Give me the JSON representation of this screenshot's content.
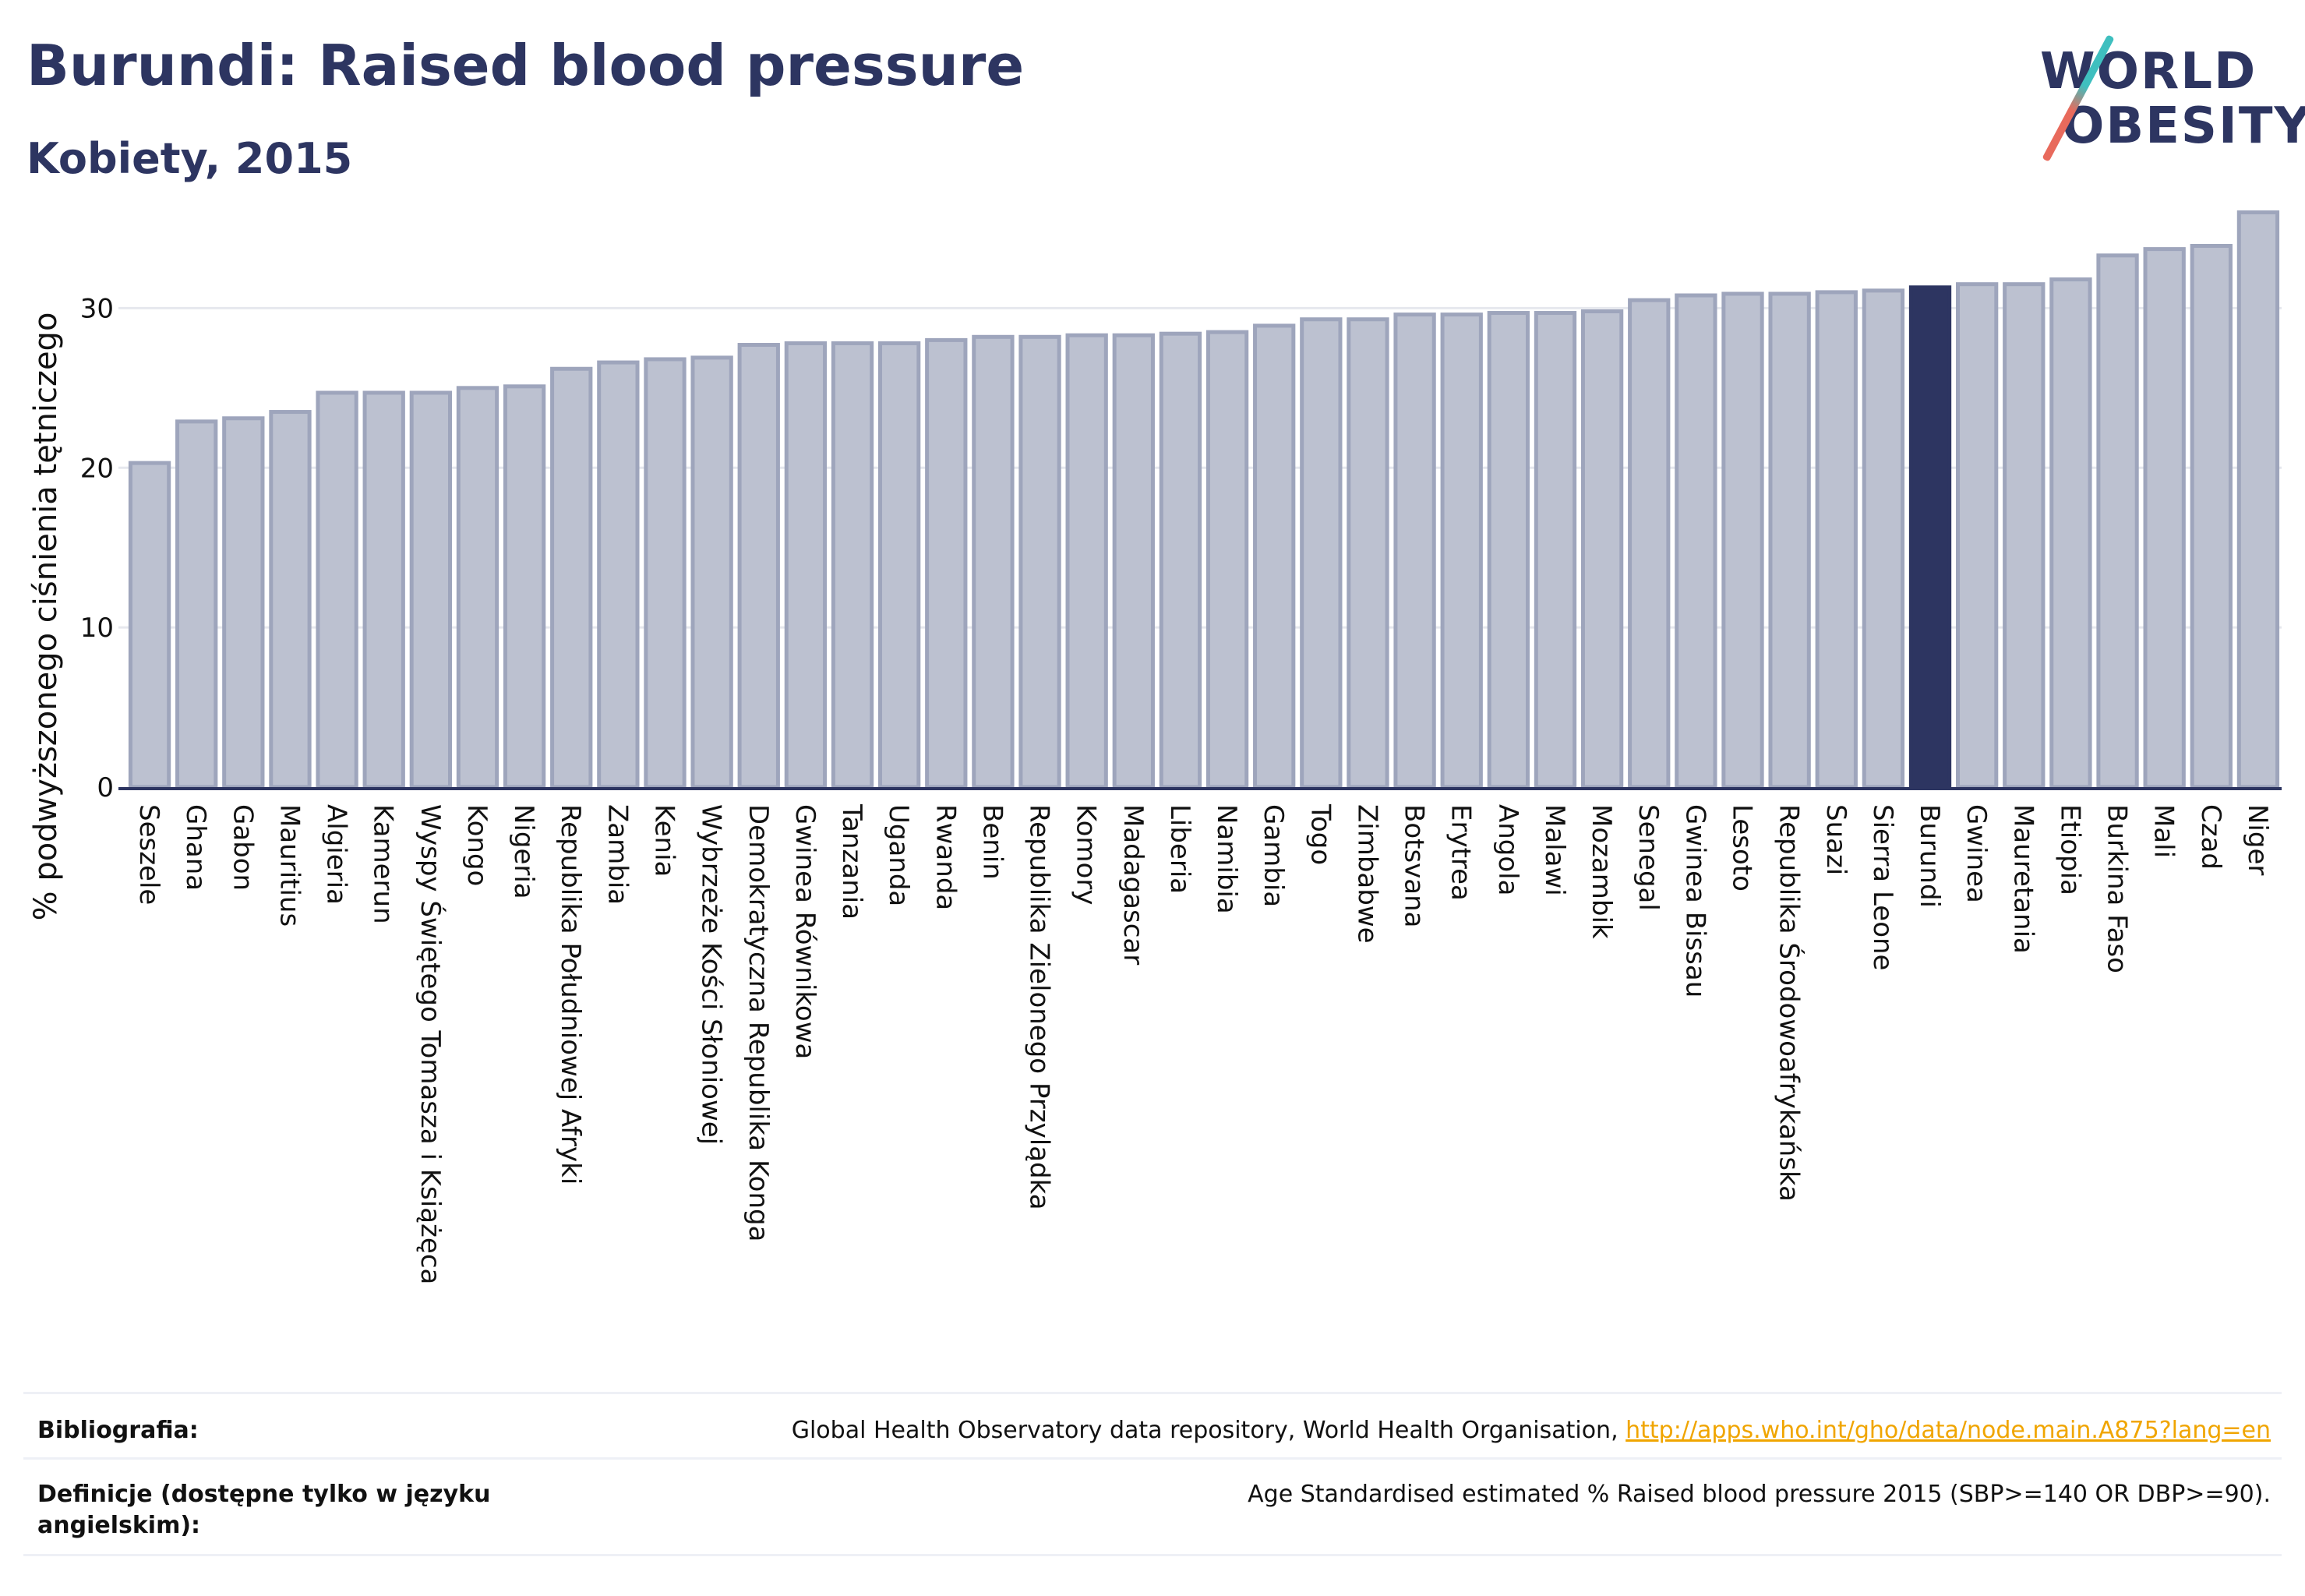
{
  "header": {
    "title": "Burundi: Raised blood pressure",
    "subtitle": "Kobiety, 2015"
  },
  "logo": {
    "line1": "WORLD",
    "line2": "OBESITY",
    "colors": {
      "text": "#2d3561",
      "slash_top": "#3fbfbf",
      "slash_bottom": "#e86a5c"
    }
  },
  "colors": {
    "bar": "#bcc1d0",
    "bar_stroke": "#9ea5bc",
    "highlight": "#2d3561",
    "grid": "#e6e8ee",
    "axis": "#2d3561",
    "text": "#111111"
  },
  "chart_data": {
    "type": "bar",
    "ylabel": "% podwyższonego ciśnienia tętniczego",
    "ylim": [
      0,
      37
    ],
    "yticks": [
      0,
      10,
      20,
      30
    ],
    "grid": true,
    "highlight": "Burundi",
    "categories": [
      "Seszele",
      "Ghana",
      "Gabon",
      "Mauritius",
      "Algieria",
      "Kamerun",
      "Wyspy Świętego Tomasza i Książęca",
      "Kongo",
      "Nigeria",
      "Republika Południowej Afryki",
      "Zambia",
      "Kenia",
      "Wybrzeże Kości Słoniowej",
      "Demokratyczna Republika Konga",
      "Gwinea Równikowa",
      "Tanzania",
      "Uganda",
      "Rwanda",
      "Benin",
      "Republika Zielonego Przylądka",
      "Komory",
      "Madagascar",
      "Liberia",
      "Namibia",
      "Gambia",
      "Togo",
      "Zimbabwe",
      "Botsvana",
      "Erytrea",
      "Angola",
      "Malawi",
      "Mozambik",
      "Senegal",
      "Gwinea Bissau",
      "Lesoto",
      "Republika Środowoafrykańska",
      "Suazi",
      "Sierra Leone",
      "Burundi",
      "Gwinea",
      "Mauretania",
      "Etiopia",
      "Burkina Faso",
      "Mali",
      "Czad",
      "Niger"
    ],
    "values": [
      20.3,
      22.9,
      23.1,
      23.5,
      24.7,
      24.7,
      24.7,
      25.0,
      25.1,
      26.2,
      26.6,
      26.8,
      26.9,
      27.7,
      27.8,
      27.8,
      27.8,
      28.0,
      28.2,
      28.2,
      28.3,
      28.3,
      28.4,
      28.5,
      28.9,
      29.3,
      29.3,
      29.6,
      29.6,
      29.7,
      29.7,
      29.8,
      30.5,
      30.8,
      30.9,
      30.9,
      31.0,
      31.1,
      31.3,
      31.5,
      31.5,
      31.8,
      33.3,
      33.7,
      33.9,
      36.0
    ]
  },
  "footer": {
    "bibliography_label": "Bibliografia:",
    "bibliography_text": "Global Health Observatory data repository, World Health Organisation, ",
    "bibliography_link": "http://apps.who.int/gho/data/node.main.A875?lang=en",
    "definition_label": "Definicje (dostępne tylko w języku angielskim):",
    "definition_text": "Age Standardised estimated % Raised blood pressure 2015 (SBP>=140 OR DBP>=90)."
  }
}
